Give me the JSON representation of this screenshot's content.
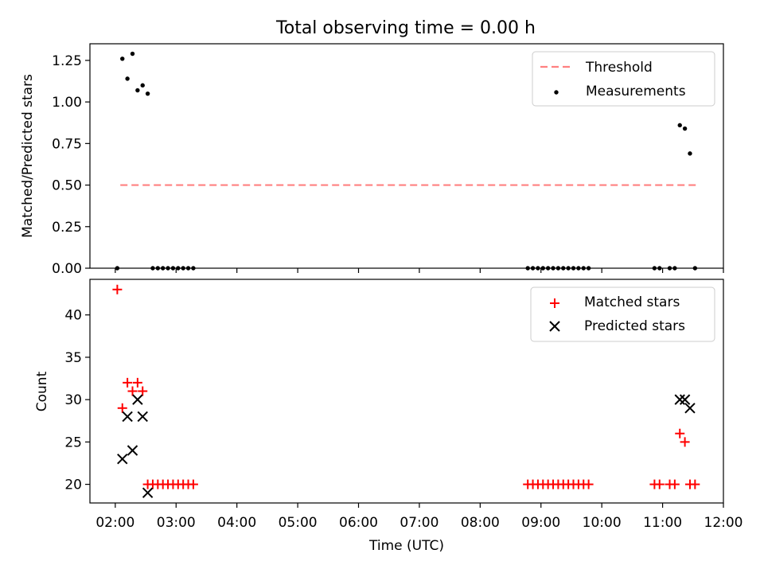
{
  "figure_title": "Total observing time = 0.00 h",
  "colors": {
    "threshold": "#ff8080",
    "measurement": "#000000",
    "matched": "#ff0000",
    "predicted": "#000000"
  },
  "chart_data": [
    {
      "type": "scatter",
      "ylabel": "Matched/Predicted stars",
      "ylim": [
        0,
        1.35
      ],
      "yticks": [
        0,
        0.25,
        0.5,
        0.75,
        1.0,
        1.25
      ],
      "ytick_labels": [
        "0.00",
        "0.25",
        "0.50",
        "0.75",
        "1.00",
        "1.25"
      ],
      "xlim": [
        "01:35",
        "12:00"
      ],
      "grid": false,
      "legend_position": "top-right",
      "threshold": {
        "name": "Threshold",
        "value": 0.5,
        "x_range": [
          "02:05",
          "11:35"
        ],
        "style": "dashed"
      },
      "series": [
        {
          "name": "Measurements",
          "marker": "dot",
          "points": [
            [
              "02:02",
              0.0
            ],
            [
              "02:07",
              1.26
            ],
            [
              "02:12",
              1.14
            ],
            [
              "02:17",
              1.29
            ],
            [
              "02:22",
              1.07
            ],
            [
              "02:27",
              1.1
            ],
            [
              "02:32",
              1.05
            ],
            [
              "02:37",
              0.0
            ],
            [
              "02:42",
              0.0
            ],
            [
              "02:47",
              0.0
            ],
            [
              "02:52",
              0.0
            ],
            [
              "02:57",
              0.0
            ],
            [
              "03:02",
              0.0
            ],
            [
              "03:07",
              0.0
            ],
            [
              "03:12",
              0.0
            ],
            [
              "03:17",
              0.0
            ],
            [
              "08:47",
              0.0
            ],
            [
              "08:52",
              0.0
            ],
            [
              "08:57",
              0.0
            ],
            [
              "09:02",
              0.0
            ],
            [
              "09:07",
              0.0
            ],
            [
              "09:12",
              0.0
            ],
            [
              "09:17",
              0.0
            ],
            [
              "09:22",
              0.0
            ],
            [
              "09:27",
              0.0
            ],
            [
              "09:32",
              0.0
            ],
            [
              "09:37",
              0.0
            ],
            [
              "09:42",
              0.0
            ],
            [
              "09:47",
              0.0
            ],
            [
              "10:52",
              0.0
            ],
            [
              "10:57",
              0.0
            ],
            [
              "11:07",
              0.0
            ],
            [
              "11:12",
              0.0
            ],
            [
              "11:17",
              0.86
            ],
            [
              "11:22",
              0.84
            ],
            [
              "11:27",
              0.69
            ],
            [
              "11:32",
              0.0
            ]
          ]
        }
      ]
    },
    {
      "type": "scatter",
      "xlabel": "Time (UTC)",
      "ylabel": "Count",
      "ylim": [
        17.8,
        44.2
      ],
      "yticks": [
        20,
        25,
        30,
        35,
        40
      ],
      "ytick_labels": [
        "20",
        "25",
        "30",
        "35",
        "40"
      ],
      "xlim": [
        "01:35",
        "12:00"
      ],
      "xtick_labels": [
        "02:00",
        "03:00",
        "04:00",
        "05:00",
        "06:00",
        "07:00",
        "08:00",
        "09:00",
        "10:00",
        "11:00",
        "12:00"
      ],
      "grid": false,
      "legend_position": "top-right",
      "series": [
        {
          "name": "Matched stars",
          "marker": "plus",
          "points": [
            [
              "02:02",
              43
            ],
            [
              "02:07",
              29
            ],
            [
              "02:12",
              32
            ],
            [
              "02:17",
              31
            ],
            [
              "02:22",
              32
            ],
            [
              "02:27",
              31
            ],
            [
              "02:32",
              20
            ],
            [
              "02:37",
              20
            ],
            [
              "02:42",
              20
            ],
            [
              "02:47",
              20
            ],
            [
              "02:52",
              20
            ],
            [
              "02:57",
              20
            ],
            [
              "03:02",
              20
            ],
            [
              "03:07",
              20
            ],
            [
              "03:12",
              20
            ],
            [
              "03:17",
              20
            ],
            [
              "08:47",
              20
            ],
            [
              "08:52",
              20
            ],
            [
              "08:57",
              20
            ],
            [
              "09:02",
              20
            ],
            [
              "09:07",
              20
            ],
            [
              "09:12",
              20
            ],
            [
              "09:17",
              20
            ],
            [
              "09:22",
              20
            ],
            [
              "09:27",
              20
            ],
            [
              "09:32",
              20
            ],
            [
              "09:37",
              20
            ],
            [
              "09:42",
              20
            ],
            [
              "09:47",
              20
            ],
            [
              "10:52",
              20
            ],
            [
              "10:57",
              20
            ],
            [
              "11:07",
              20
            ],
            [
              "11:12",
              20
            ],
            [
              "11:17",
              26
            ],
            [
              "11:22",
              25
            ],
            [
              "11:27",
              20
            ],
            [
              "11:32",
              20
            ]
          ]
        },
        {
          "name": "Predicted stars",
          "marker": "x",
          "points": [
            [
              "02:07",
              23
            ],
            [
              "02:12",
              28
            ],
            [
              "02:17",
              24
            ],
            [
              "02:22",
              30
            ],
            [
              "02:27",
              28
            ],
            [
              "02:32",
              19
            ],
            [
              "11:17",
              30
            ],
            [
              "11:22",
              30
            ],
            [
              "11:27",
              29
            ]
          ]
        }
      ]
    }
  ]
}
